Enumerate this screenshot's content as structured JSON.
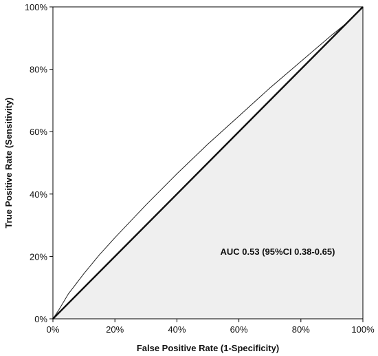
{
  "chart_data": {
    "type": "line",
    "title": "",
    "xlabel": "False Positive Rate (1-Specificity)",
    "ylabel": "True Positive Rate (Sensitivity)",
    "xlim": [
      0,
      100
    ],
    "ylim": [
      0,
      100
    ],
    "x_ticks": [
      "0%",
      "20%",
      "40%",
      "60%",
      "80%",
      "100%"
    ],
    "y_ticks": [
      "0%",
      "20%",
      "40%",
      "60%",
      "80%",
      "100%"
    ],
    "grid": false,
    "legend": "none",
    "annotation": "AUC 0.53 (95%CI 0.38-0.65)",
    "series": [
      {
        "role": "roc-curve",
        "x": [
          0,
          2,
          5,
          10,
          15,
          20,
          30,
          40,
          50,
          60,
          70,
          80,
          90,
          95,
          100
        ],
        "y": [
          0,
          3,
          8,
          14.5,
          20.5,
          26,
          36.5,
          46.5,
          56,
          65,
          74,
          82.5,
          91,
          95,
          100
        ]
      },
      {
        "role": "reference-diagonal",
        "x": [
          0,
          100
        ],
        "y": [
          0,
          100
        ]
      }
    ],
    "colors": {
      "area_fill": "#efefef",
      "curve": "#222222",
      "diagonal": "#111111",
      "frame": "#000000"
    }
  }
}
